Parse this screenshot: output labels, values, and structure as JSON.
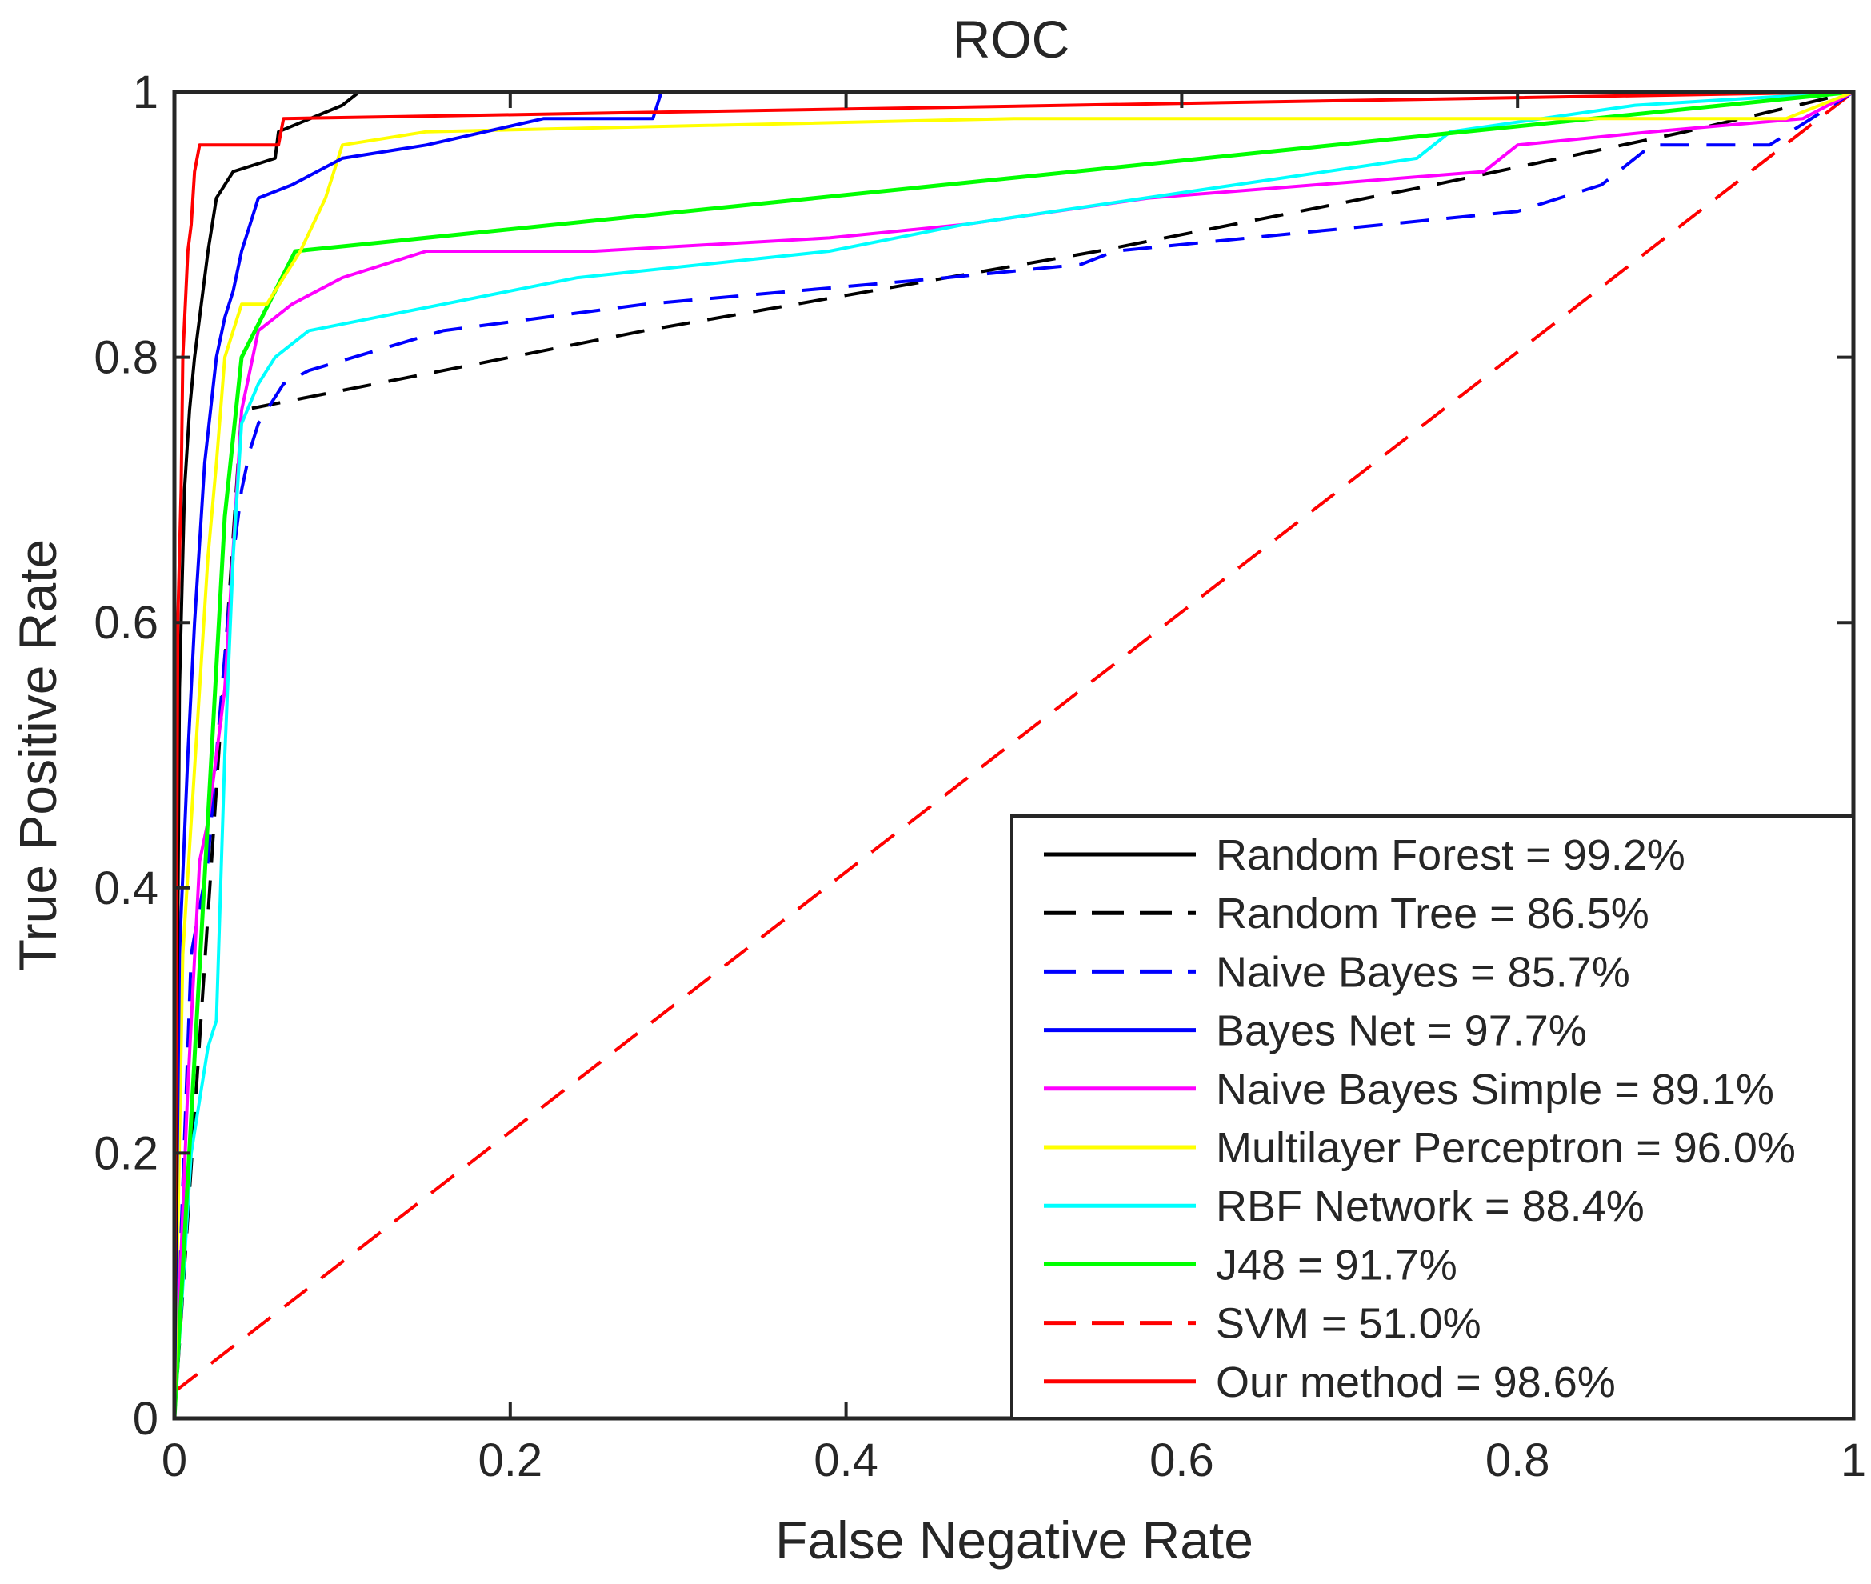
{
  "chart_data": {
    "type": "line",
    "title": "ROC",
    "xlabel": "False Negative Rate",
    "ylabel": "True Positive Rate",
    "xlim": [
      0,
      1
    ],
    "ylim": [
      0,
      1
    ],
    "grid": false,
    "legend_position": "bottom-right",
    "x_ticks": [
      0,
      0.2,
      0.4,
      0.6,
      0.8,
      1
    ],
    "y_ticks": [
      0,
      0.2,
      0.4,
      0.6,
      0.8,
      1
    ],
    "x_tick_labels": [
      "0",
      "0.2",
      "0.4",
      "0.6",
      "0.8",
      "1"
    ],
    "y_tick_labels": [
      "0",
      "0.2",
      "0.4",
      "0.6",
      "0.8",
      "1"
    ],
    "series": [
      {
        "name": "Random Forest",
        "legend_label": "Random Forest = 99.2%",
        "auc": "99.2%",
        "color": "#000000",
        "dash": "solid",
        "x": [
          0,
          0.003,
          0.006,
          0.009,
          0.012,
          0.016,
          0.02,
          0.025,
          0.03,
          0.035,
          0.06,
          0.062,
          0.1,
          0.11,
          0.9,
          1
        ],
        "y": [
          0,
          0.55,
          0.7,
          0.76,
          0.8,
          0.84,
          0.88,
          0.92,
          0.93,
          0.94,
          0.95,
          0.97,
          0.99,
          1,
          1,
          1
        ]
      },
      {
        "name": "Random Tree",
        "legend_label": "Random Tree = 86.5%",
        "auc": "86.5%",
        "color": "#000000",
        "dash": "dashed",
        "x": [
          0,
          0.04,
          0.28,
          0.55,
          0.75,
          0.9,
          1
        ],
        "y": [
          0,
          0.76,
          0.82,
          0.88,
          0.93,
          0.97,
          1
        ]
      },
      {
        "name": "Naive Bayes",
        "legend_label": "Naive Bayes = 85.7%",
        "auc": "85.7%",
        "color": "#0000ff",
        "dash": "dashed",
        "x": [
          0,
          0.01,
          0.02,
          0.025,
          0.035,
          0.04,
          0.045,
          0.05,
          0.06,
          0.065,
          0.08,
          0.16,
          0.28,
          0.46,
          0.54,
          0.56,
          0.72,
          0.8,
          0.85,
          0.88,
          0.95,
          1
        ],
        "y": [
          0,
          0.35,
          0.42,
          0.5,
          0.65,
          0.7,
          0.73,
          0.75,
          0.77,
          0.78,
          0.79,
          0.82,
          0.84,
          0.86,
          0.87,
          0.88,
          0.9,
          0.91,
          0.93,
          0.96,
          0.96,
          1
        ]
      },
      {
        "name": "Bayes Net",
        "legend_label": "Bayes Net = 97.7%",
        "auc": "97.7%",
        "color": "#0000ff",
        "dash": "solid",
        "x": [
          0,
          0.003,
          0.008,
          0.012,
          0.018,
          0.025,
          0.03,
          0.035,
          0.04,
          0.045,
          0.05,
          0.07,
          0.1,
          0.15,
          0.22,
          0.285,
          0.29,
          0.6,
          1
        ],
        "y": [
          0,
          0.35,
          0.5,
          0.6,
          0.72,
          0.8,
          0.83,
          0.85,
          0.88,
          0.9,
          0.92,
          0.93,
          0.95,
          0.96,
          0.98,
          0.98,
          1,
          1,
          1
        ]
      },
      {
        "name": "Naive Bayes Simple",
        "legend_label": "Naive Bayes Simple = 89.1%",
        "auc": "89.1%",
        "color": "#ff00ff",
        "dash": "solid",
        "x": [
          0,
          0.008,
          0.015,
          0.02,
          0.025,
          0.03,
          0.04,
          0.05,
          0.07,
          0.1,
          0.15,
          0.25,
          0.39,
          0.47,
          0.58,
          0.78,
          0.8,
          0.88,
          0.97,
          1
        ],
        "y": [
          0,
          0.25,
          0.42,
          0.45,
          0.5,
          0.55,
          0.76,
          0.82,
          0.84,
          0.86,
          0.88,
          0.88,
          0.89,
          0.9,
          0.92,
          0.94,
          0.96,
          0.97,
          0.98,
          1
        ]
      },
      {
        "name": "Multilayer Perceptron",
        "legend_label": "Multilayer Perceptron = 96.0%",
        "auc": "96.0%",
        "color": "#ffff00",
        "dash": "solid",
        "x": [
          0,
          0.005,
          0.01,
          0.015,
          0.02,
          0.025,
          0.03,
          0.04,
          0.055,
          0.075,
          0.09,
          0.1,
          0.15,
          0.5,
          0.96,
          1
        ],
        "y": [
          0,
          0.35,
          0.45,
          0.55,
          0.65,
          0.72,
          0.8,
          0.84,
          0.84,
          0.88,
          0.92,
          0.96,
          0.97,
          0.98,
          0.98,
          1
        ]
      },
      {
        "name": "RBF Network",
        "legend_label": "RBF Network = 88.4%",
        "auc": "88.4%",
        "color": "#00ffff",
        "dash": "solid",
        "x": [
          0,
          0.01,
          0.02,
          0.025,
          0.03,
          0.035,
          0.04,
          0.05,
          0.06,
          0.08,
          0.16,
          0.24,
          0.39,
          0.47,
          0.74,
          0.76,
          0.87,
          1
        ],
        "y": [
          0,
          0.2,
          0.28,
          0.3,
          0.5,
          0.65,
          0.75,
          0.78,
          0.8,
          0.82,
          0.84,
          0.86,
          0.88,
          0.9,
          0.95,
          0.97,
          0.99,
          1
        ]
      },
      {
        "name": "J48",
        "legend_label": "J48 = 91.7%",
        "auc": "91.7%",
        "color": "#00ff00",
        "dash": "solid",
        "x": [
          0,
          0.03,
          0.04,
          0.072,
          1
        ],
        "y": [
          0,
          0.68,
          0.8,
          0.88,
          1
        ]
      },
      {
        "name": "SVM",
        "legend_label": "SVM = 51.0%",
        "auc": "51.0%",
        "color": "#ff0000",
        "dash": "dashed",
        "x": [
          0,
          1
        ],
        "y": [
          0.02,
          1
        ]
      },
      {
        "name": "Our method",
        "legend_label": "Our method = 98.6%",
        "auc": "98.6%",
        "color": "#ff0000",
        "dash": "solid",
        "x": [
          0,
          0.002,
          0.004,
          0.005,
          0.008,
          0.01,
          0.012,
          0.015,
          0.062,
          0.065,
          1
        ],
        "y": [
          0,
          0.6,
          0.7,
          0.8,
          0.88,
          0.9,
          0.94,
          0.96,
          0.96,
          0.98,
          1
        ]
      }
    ]
  }
}
